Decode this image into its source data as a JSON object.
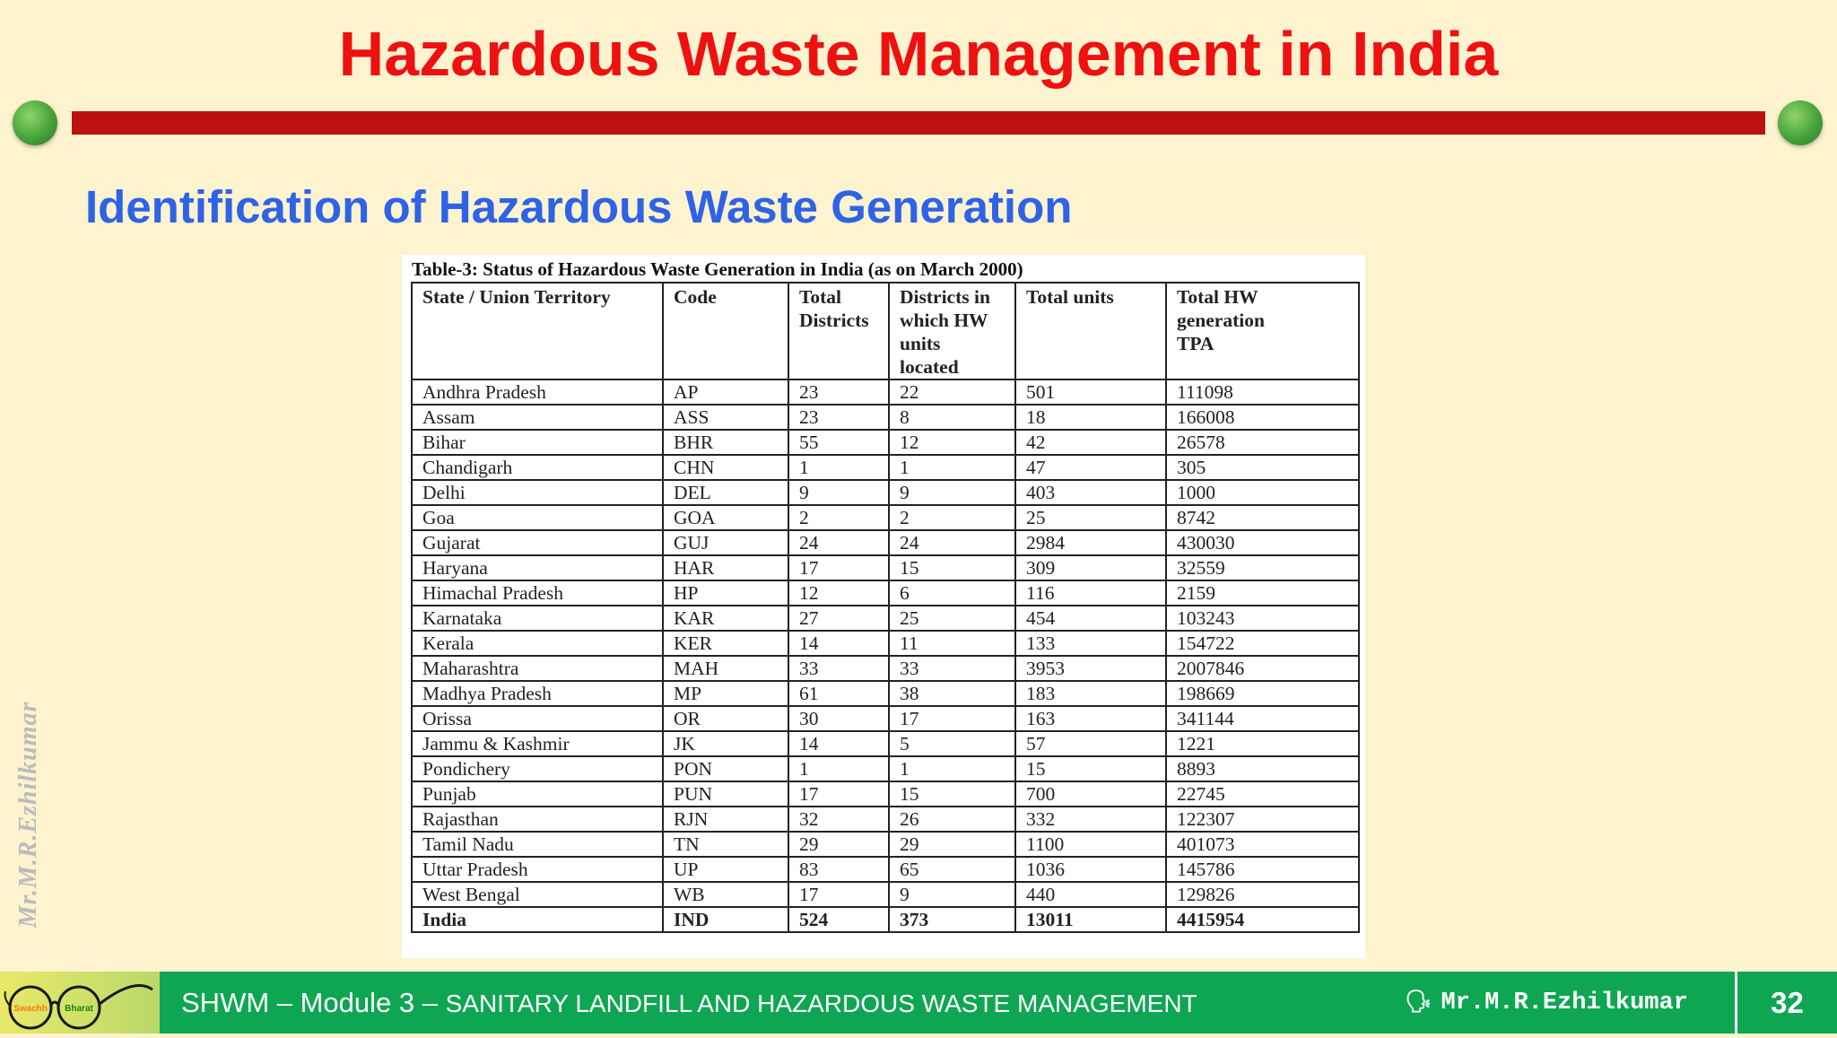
{
  "slide": {
    "title": "Hazardous Waste Management in India",
    "subtitle": "Identification of Hazardous Waste Generation",
    "watermark": "Mr.M.R.Ezhilkumar"
  },
  "table": {
    "caption": "Table-3: Status of Hazardous Waste Generation in India (as on March 2000)",
    "headers": [
      [
        "State / Union Territory"
      ],
      [
        "Code"
      ],
      [
        "Total",
        "Districts"
      ],
      [
        "Districts in",
        "which HW",
        "units",
        "located"
      ],
      [
        "Total units"
      ],
      [
        "Total HW",
        "generation",
        "TPA"
      ]
    ],
    "rows": [
      [
        "Andhra Pradesh",
        "AP",
        "23",
        "22",
        "501",
        "111098"
      ],
      [
        "Assam",
        "ASS",
        "23",
        "8",
        "18",
        "166008"
      ],
      [
        "Bihar",
        "BHR",
        "55",
        "12",
        "42",
        "26578"
      ],
      [
        "Chandigarh",
        "CHN",
        "1",
        "1",
        "47",
        "305"
      ],
      [
        "Delhi",
        "DEL",
        "9",
        "9",
        "403",
        "1000"
      ],
      [
        "Goa",
        "GOA",
        "2",
        "2",
        "25",
        "8742"
      ],
      [
        "Gujarat",
        "GUJ",
        "24",
        "24",
        "2984",
        "430030"
      ],
      [
        "Haryana",
        "HAR",
        "17",
        "15",
        "309",
        "32559"
      ],
      [
        "Himachal Pradesh",
        "HP",
        "12",
        "6",
        "116",
        "2159"
      ],
      [
        "Karnataka",
        "KAR",
        "27",
        "25",
        "454",
        "103243"
      ],
      [
        "Kerala",
        "KER",
        "14",
        "11",
        "133",
        "154722"
      ],
      [
        "Maharashtra",
        "MAH",
        "33",
        "33",
        "3953",
        "2007846"
      ],
      [
        "Madhya Pradesh",
        "MP",
        "61",
        "38",
        "183",
        "198669"
      ],
      [
        "Orissa",
        "OR",
        "30",
        "17",
        "163",
        "341144"
      ],
      [
        "Jammu & Kashmir",
        "JK",
        "14",
        "5",
        "57",
        "1221"
      ],
      [
        "Pondichery",
        "PON",
        "1",
        "1",
        "15",
        "8893"
      ],
      [
        "Punjab",
        "PUN",
        "17",
        "15",
        "700",
        "22745"
      ],
      [
        "Rajasthan",
        "RJN",
        "32",
        "26",
        "332",
        "122307"
      ],
      [
        "Tamil Nadu",
        "TN",
        "29",
        "29",
        "1100",
        "401073"
      ],
      [
        "Uttar Pradesh",
        "UP",
        "83",
        "65",
        "1036",
        "145786"
      ],
      [
        "West Bengal",
        "WB",
        "17",
        "9",
        "440",
        "129826"
      ]
    ],
    "total_row": [
      "India",
      "IND",
      "524",
      "373",
      "13011",
      "4415954"
    ]
  },
  "footer": {
    "module_prefix": "SHWM – Module 3 – ",
    "module_name": "SANITARY LANDFILL AND HAZARDOUS WASTE MANAGEMENT",
    "author": "Mr.M.R.Ezhilkumar",
    "page_number": "32",
    "logo_text": [
      "Swachh",
      "Bharat"
    ]
  },
  "colors": {
    "background": "#fdf3cf",
    "title": "#ee1111",
    "subtitle": "#2f63e6",
    "bar": "#bb1111",
    "footer": "#0ea652"
  },
  "icons": [
    "green-dot-icon",
    "swachh-bharat-glasses-logo",
    "speaker-head-icon"
  ]
}
